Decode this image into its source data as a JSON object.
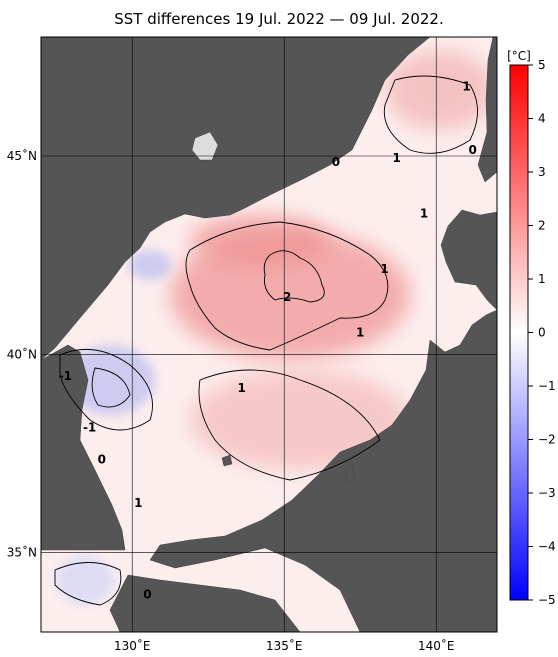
{
  "title": "SST differences 19 Jul. 2022 — 09 Jul. 2022.",
  "map": {
    "lon_range": [
      127,
      142
    ],
    "lat_range": [
      33,
      48
    ],
    "lon_ticks": [
      {
        "value": 130,
        "label": "130˚E"
      },
      {
        "value": 135,
        "label": "135˚E"
      },
      {
        "value": 140,
        "label": "140˚E"
      }
    ],
    "lat_ticks": [
      {
        "value": 35,
        "label": "35˚N"
      },
      {
        "value": 40,
        "label": "40˚N"
      },
      {
        "value": 45,
        "label": "45˚N"
      }
    ],
    "land_color": "#555555",
    "contour_labels": [
      {
        "text": "1",
        "lon": 141.0,
        "lat": 46.7
      },
      {
        "text": "0",
        "lon": 136.7,
        "lat": 44.8
      },
      {
        "text": "1",
        "lon": 138.7,
        "lat": 44.9
      },
      {
        "text": "0",
        "lon": 141.2,
        "lat": 45.1
      },
      {
        "text": "1",
        "lon": 139.6,
        "lat": 43.5
      },
      {
        "text": "1",
        "lon": 138.3,
        "lat": 42.1
      },
      {
        "text": "2",
        "lon": 135.1,
        "lat": 41.4
      },
      {
        "text": "1",
        "lon": 137.5,
        "lat": 40.5
      },
      {
        "text": "1",
        "lon": 133.6,
        "lat": 39.1
      },
      {
        "text": "-1",
        "lon": 127.8,
        "lat": 39.4
      },
      {
        "text": "-1",
        "lon": 128.6,
        "lat": 38.1
      },
      {
        "text": "0",
        "lon": 129.0,
        "lat": 37.3
      },
      {
        "text": "1",
        "lon": 130.2,
        "lat": 36.2
      },
      {
        "text": "0",
        "lon": 130.5,
        "lat": 33.9
      }
    ]
  },
  "colorbar": {
    "unit": "[°C]",
    "min": -5,
    "max": 5,
    "labels": [
      "5",
      "4",
      "3",
      "2",
      "1",
      "0",
      "−1",
      "−2",
      "−3",
      "−4",
      "−5"
    ]
  }
}
